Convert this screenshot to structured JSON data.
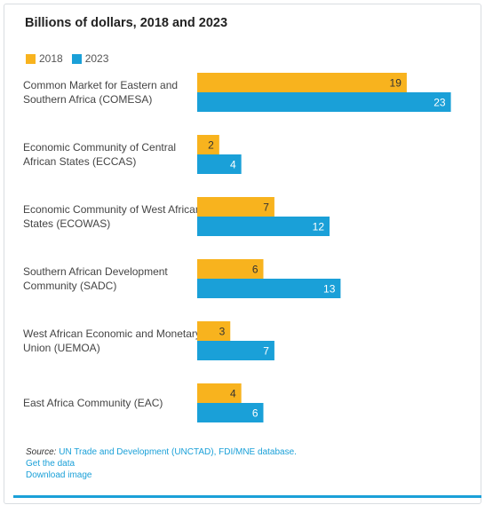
{
  "chart_data": {
    "type": "bar",
    "orientation": "horizontal",
    "title": "Billions of dollars, 2018 and 2023",
    "categories": [
      [
        "Common Market for Eastern and",
        "Southern Africa (COMESA)"
      ],
      [
        "Economic Community of Central",
        "African States (ECCAS)"
      ],
      [
        "Economic Community of West African",
        "States (ECOWAS)"
      ],
      [
        "Southern African Development",
        "Community (SADC)"
      ],
      [
        "West African Economic and Monetary",
        "Union (UEMOA)"
      ],
      [
        "East Africa Community (EAC)"
      ]
    ],
    "series": [
      {
        "name": "2018",
        "color": "#f8b31e",
        "label_color": "#333333",
        "values": [
          19,
          2,
          7,
          6,
          3,
          4
        ]
      },
      {
        "name": "2023",
        "color": "#1aa0d8",
        "label_color": "#ffffff",
        "values": [
          23,
          4,
          12,
          13,
          7,
          6
        ]
      }
    ],
    "xlim": [
      0,
      24
    ],
    "legend_position": "top-left",
    "grid": false
  },
  "source": {
    "prefix": "Source:",
    "text": "UN Trade and Development (UNCTAD), FDI/MNE database.",
    "links": [
      "Get the data",
      "Download image"
    ]
  }
}
